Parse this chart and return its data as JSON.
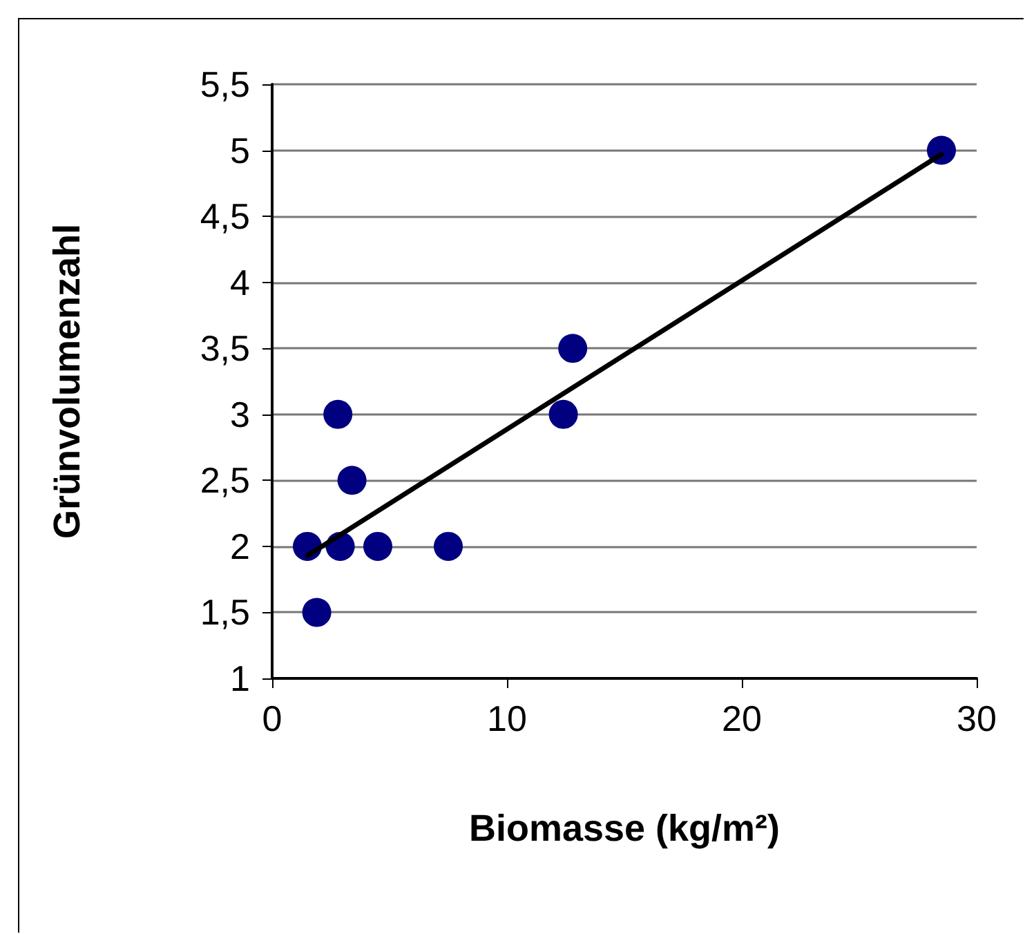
{
  "chart_data": {
    "type": "scatter",
    "xlabel": "Biomasse (kg/m²)",
    "ylabel": "Grünvolumenzahl",
    "x": [
      1.5,
      1.9,
      2.8,
      2.9,
      3.4,
      4.5,
      7.5,
      12.4,
      12.8,
      28.5
    ],
    "series": [
      {
        "color": "#000080",
        "marker": "circle",
        "values": [
          2,
          1.5,
          3,
          2,
          2.5,
          2,
          2,
          3,
          3.5,
          5
        ]
      },
      {
        "type": "line",
        "marker": "none",
        "color": "#000000",
        "x": [
          1.5,
          28.5
        ],
        "values": [
          1.93,
          4.97
        ]
      }
    ],
    "xlim": [
      0,
      30
    ],
    "xticks": [
      0,
      10,
      20,
      30
    ],
    "ylim": [
      1,
      5.5
    ],
    "yticks": [
      {
        "value": 1,
        "label": "1"
      },
      {
        "value": 1.5,
        "label": "1,5"
      },
      {
        "value": 2,
        "label": "2"
      },
      {
        "value": 2.5,
        "label": "2,5"
      },
      {
        "value": 3,
        "label": "3"
      },
      {
        "value": 3.5,
        "label": "3,5"
      },
      {
        "value": 4,
        "label": "4"
      },
      {
        "value": 4.5,
        "label": "4,5"
      },
      {
        "value": 5,
        "label": "5"
      },
      {
        "value": 5.5,
        "label": "5,5"
      }
    ],
    "grid": "y"
  }
}
